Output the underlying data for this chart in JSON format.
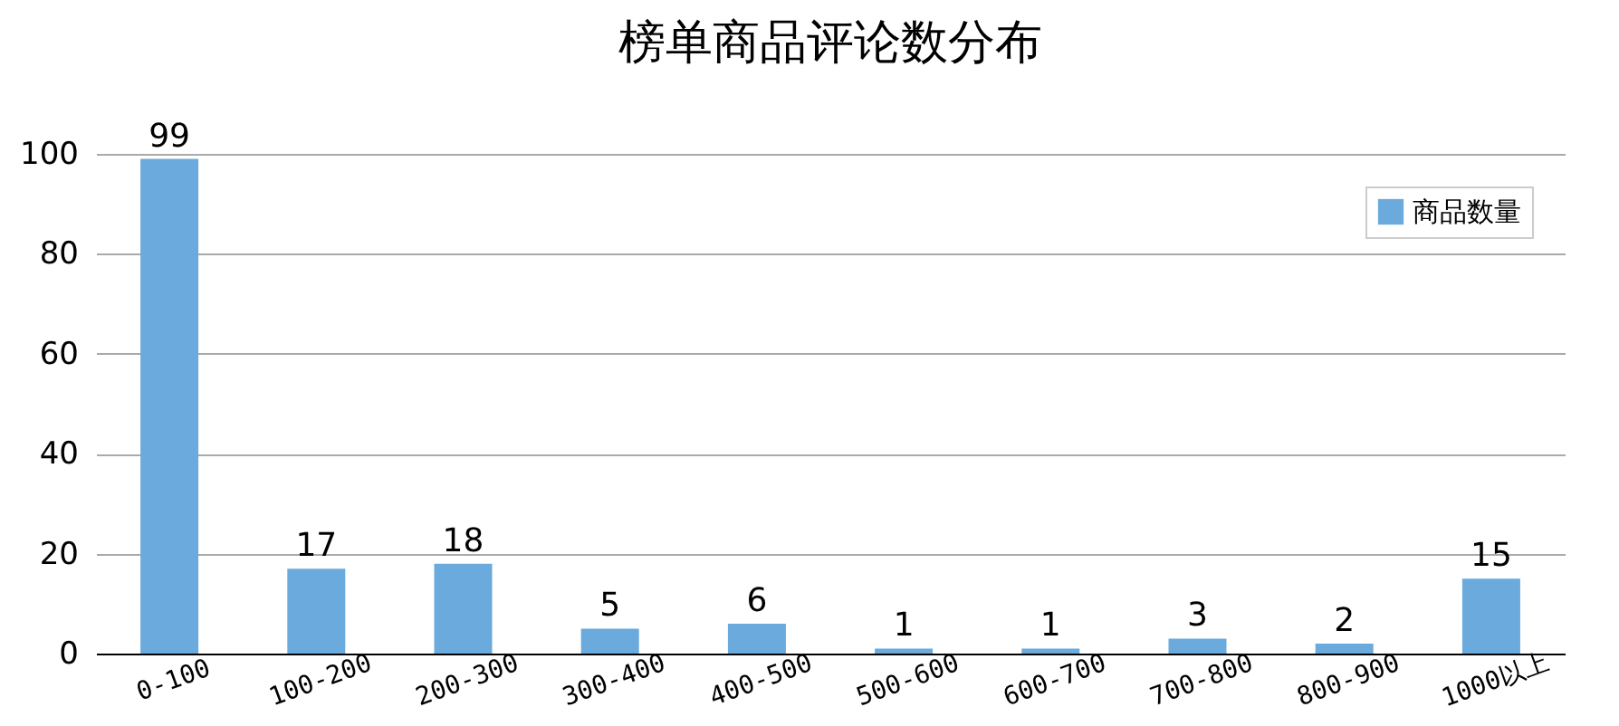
{
  "chart_data": {
    "type": "bar",
    "title": "榜单商品评论数分布",
    "categories": [
      "0-100",
      "100-200",
      "200-300",
      "300-400",
      "400-500",
      "500-600",
      "600-700",
      "700-800",
      "800-900",
      "1000以上"
    ],
    "series": [
      {
        "name": "商品数量",
        "color": "#6aaadc",
        "values": [
          99,
          17,
          18,
          5,
          6,
          1,
          1,
          3,
          2,
          15
        ]
      }
    ],
    "ylim": [
      0,
      100
    ],
    "yticks": [
      0,
      20,
      40,
      60,
      80,
      100
    ],
    "grid": "y",
    "legend": "top right",
    "data_labels": true
  }
}
